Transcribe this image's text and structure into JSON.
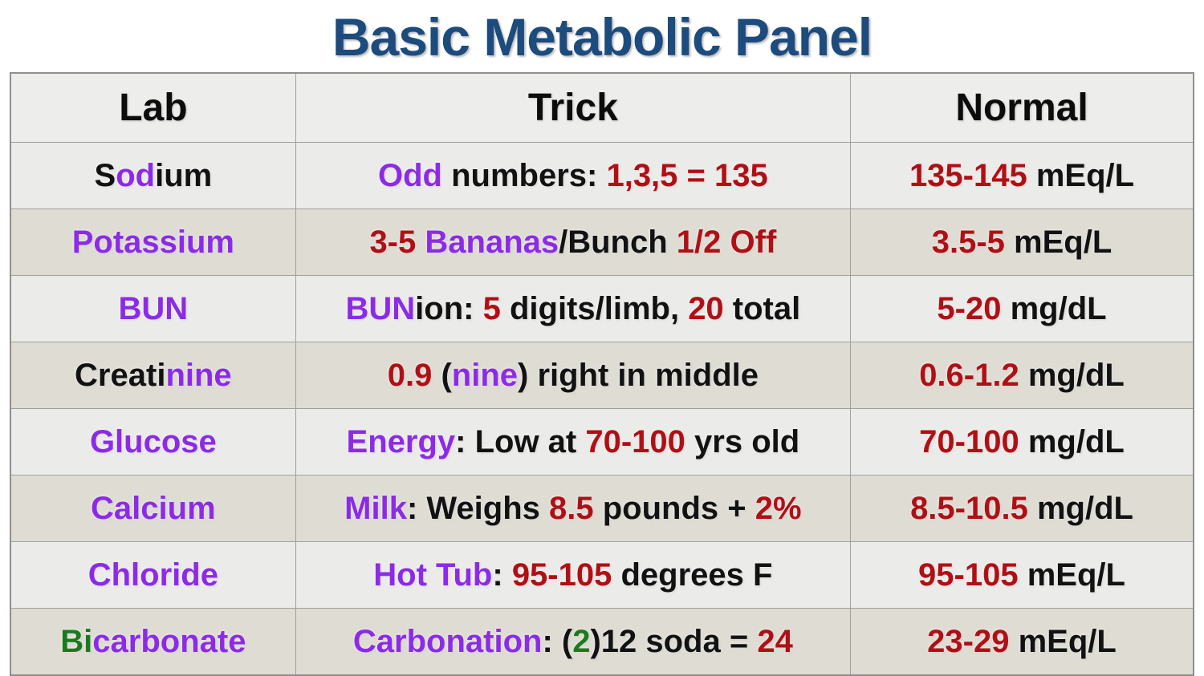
{
  "title": "Basic Metabolic Panel",
  "colors": {
    "title": "#1C4B7D",
    "black": "#121212",
    "purple": "#8C2BE6",
    "red": "#AF1015",
    "green": "#1C7A1E",
    "row_light": "#EBEBE9",
    "row_dark": "#DEDCD3",
    "header_bg": "#EDEDEB"
  },
  "table": {
    "headers": [
      "Lab",
      "Trick",
      "Normal"
    ],
    "rows": [
      {
        "lab": [
          {
            "t": "S",
            "c": "black"
          },
          {
            "t": "od",
            "c": "purple"
          },
          {
            "t": "ium",
            "c": "black"
          }
        ],
        "trick": [
          {
            "t": "Odd",
            "c": "purple"
          },
          {
            "t": " numbers: ",
            "c": "black"
          },
          {
            "t": "1,3,5 = 135",
            "c": "red"
          }
        ],
        "normal": [
          {
            "t": "135-145",
            "c": "red"
          },
          {
            "t": " mEq/L",
            "c": "black"
          }
        ]
      },
      {
        "lab": [
          {
            "t": "Potassium",
            "c": "purple"
          }
        ],
        "trick": [
          {
            "t": "3-5",
            "c": "red"
          },
          {
            "t": " ",
            "c": "black"
          },
          {
            "t": "Bananas",
            "c": "purple"
          },
          {
            "t": "/Bunch ",
            "c": "black"
          },
          {
            "t": "1/2 Off",
            "c": "red"
          }
        ],
        "normal": [
          {
            "t": "3.5-5",
            "c": "red"
          },
          {
            "t": " mEq/L",
            "c": "black"
          }
        ]
      },
      {
        "lab": [
          {
            "t": "BUN",
            "c": "purple"
          }
        ],
        "trick": [
          {
            "t": "BUN",
            "c": "purple"
          },
          {
            "t": "ion: ",
            "c": "black"
          },
          {
            "t": "5",
            "c": "red"
          },
          {
            "t": " digits/limb, ",
            "c": "black"
          },
          {
            "t": "20",
            "c": "red"
          },
          {
            "t": " total",
            "c": "black"
          }
        ],
        "normal": [
          {
            "t": "5-20",
            "c": "red"
          },
          {
            "t": " mg/dL",
            "c": "black"
          }
        ]
      },
      {
        "lab": [
          {
            "t": "Creati",
            "c": "black"
          },
          {
            "t": "nine",
            "c": "purple"
          }
        ],
        "trick": [
          {
            "t": "0.9",
            "c": "red"
          },
          {
            "t": " (",
            "c": "black"
          },
          {
            "t": "nine",
            "c": "purple"
          },
          {
            "t": ") right in middle",
            "c": "black"
          }
        ],
        "normal": [
          {
            "t": "0.6-1.2",
            "c": "red"
          },
          {
            "t": " mg/dL",
            "c": "black"
          }
        ]
      },
      {
        "lab": [
          {
            "t": "Glucose",
            "c": "purple"
          }
        ],
        "trick": [
          {
            "t": "Energy",
            "c": "purple"
          },
          {
            "t": ": Low at ",
            "c": "black"
          },
          {
            "t": "70-100",
            "c": "red"
          },
          {
            "t": " yrs old",
            "c": "black"
          }
        ],
        "normal": [
          {
            "t": "70-100",
            "c": "red"
          },
          {
            "t": " mg/dL",
            "c": "black"
          }
        ]
      },
      {
        "lab": [
          {
            "t": "Calcium",
            "c": "purple"
          }
        ],
        "trick": [
          {
            "t": "Milk",
            "c": "purple"
          },
          {
            "t": ": Weighs ",
            "c": "black"
          },
          {
            "t": "8.5",
            "c": "red"
          },
          {
            "t": " pounds + ",
            "c": "black"
          },
          {
            "t": "2%",
            "c": "red"
          }
        ],
        "normal": [
          {
            "t": "8.5-10.5",
            "c": "red"
          },
          {
            "t": " mg/dL",
            "c": "black"
          }
        ]
      },
      {
        "lab": [
          {
            "t": "Chloride",
            "c": "purple"
          }
        ],
        "trick": [
          {
            "t": "Hot Tub",
            "c": "purple"
          },
          {
            "t": ": ",
            "c": "black"
          },
          {
            "t": "95-105",
            "c": "red"
          },
          {
            "t": " degrees F",
            "c": "black"
          }
        ],
        "normal": [
          {
            "t": "95-105",
            "c": "red"
          },
          {
            "t": " mEq/L",
            "c": "black"
          }
        ]
      },
      {
        "lab": [
          {
            "t": "Bi",
            "c": "green"
          },
          {
            "t": "carbonate",
            "c": "purple"
          }
        ],
        "trick": [
          {
            "t": "Carbonation",
            "c": "purple"
          },
          {
            "t": ": (",
            "c": "black"
          },
          {
            "t": "2",
            "c": "green"
          },
          {
            "t": ")12 soda = ",
            "c": "black"
          },
          {
            "t": "24",
            "c": "red"
          }
        ],
        "normal": [
          {
            "t": "23-29",
            "c": "red"
          },
          {
            "t": " mEq/L",
            "c": "black"
          }
        ]
      }
    ]
  },
  "chart_data": {
    "type": "table",
    "title": "Basic Metabolic Panel",
    "columns": [
      "Lab",
      "Trick",
      "Normal"
    ],
    "rows": [
      [
        "Sodium",
        "Odd numbers: 1,3,5 = 135",
        "135-145 mEq/L"
      ],
      [
        "Potassium",
        "3-5 Bananas/Bunch 1/2 Off",
        "3.5-5 mEq/L"
      ],
      [
        "BUN",
        "BUNion: 5 digits/limb, 20 total",
        "5-20 mg/dL"
      ],
      [
        "Creatinine",
        "0.9 (nine) right in middle",
        "0.6-1.2 mg/dL"
      ],
      [
        "Glucose",
        "Energy: Low at 70-100 yrs old",
        "70-100 mg/dL"
      ],
      [
        "Calcium",
        "Milk: Weighs 8.5 pounds + 2%",
        "8.5-10.5 mg/dL"
      ],
      [
        "Chloride",
        "Hot Tub: 95-105 degrees F",
        "95-105 mEq/L"
      ],
      [
        "Bicarbonate",
        "Carbonation: (2)12 soda = 24",
        "23-29 mEq/L"
      ]
    ]
  }
}
